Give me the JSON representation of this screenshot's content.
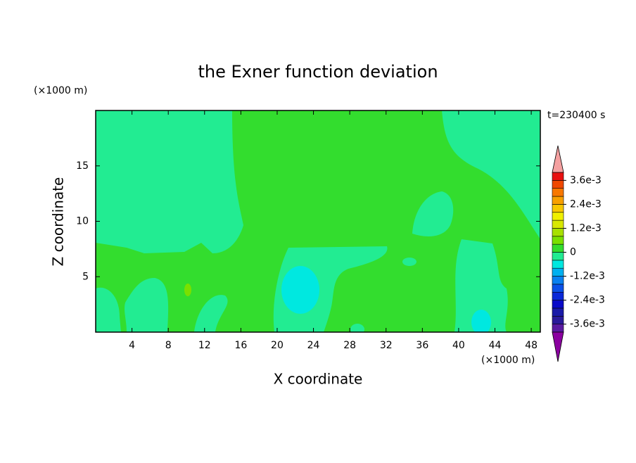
{
  "chart_data": {
    "type": "contour",
    "title": "the Exner function deviation",
    "x_label": "X coordinate",
    "y_label": "Z coordinate",
    "x_unit": "(×1000 m)",
    "y_unit": "(×1000 m)",
    "annotation": "t=230400 s",
    "xlim": [
      0,
      49
    ],
    "xticks": [
      4,
      8,
      12,
      16,
      20,
      24,
      28,
      32,
      36,
      40,
      44,
      48
    ],
    "ylim": [
      0,
      20
    ],
    "yticks": [
      5,
      10,
      15
    ],
    "colorbar": {
      "levels": [
        -0.004,
        -0.0036,
        -0.0032,
        -0.0028,
        -0.0024,
        -0.002,
        -0.0016,
        -0.0012,
        -0.0008,
        -0.0004,
        0,
        0.0004,
        0.0008,
        0.0012,
        0.0016,
        0.002,
        0.0024,
        0.0028,
        0.0032,
        0.0036,
        0.004
      ],
      "colors": [
        "#5a1aa0",
        "#2a1a9a",
        "#1a1aa8",
        "#0a0ac8",
        "#0a28d8",
        "#0a50e8",
        "#0a80f0",
        "#00b0f0",
        "#00e8e0",
        "#22ec92",
        "#33dd2e",
        "#7ae000",
        "#a8e000",
        "#d8e800",
        "#f0f000",
        "#f8c800",
        "#f8a000",
        "#f87800",
        "#f04800",
        "#e81010"
      ],
      "under_color": "#8b00a0",
      "over_color": "#f4a0a0",
      "ticks": [
        {
          "value": 0.0036,
          "label": "3.6e-3"
        },
        {
          "value": 0.0024,
          "label": "2.4e-3"
        },
        {
          "value": 0.0012,
          "label": "1.2e-3"
        },
        0,
        {
          "value": -0.0012,
          "label": "-1.2e-3"
        },
        {
          "value": -0.0024,
          "label": "-2.4e-3"
        },
        {
          "value": -0.0036,
          "label": "-3.6e-3"
        }
      ]
    }
  }
}
